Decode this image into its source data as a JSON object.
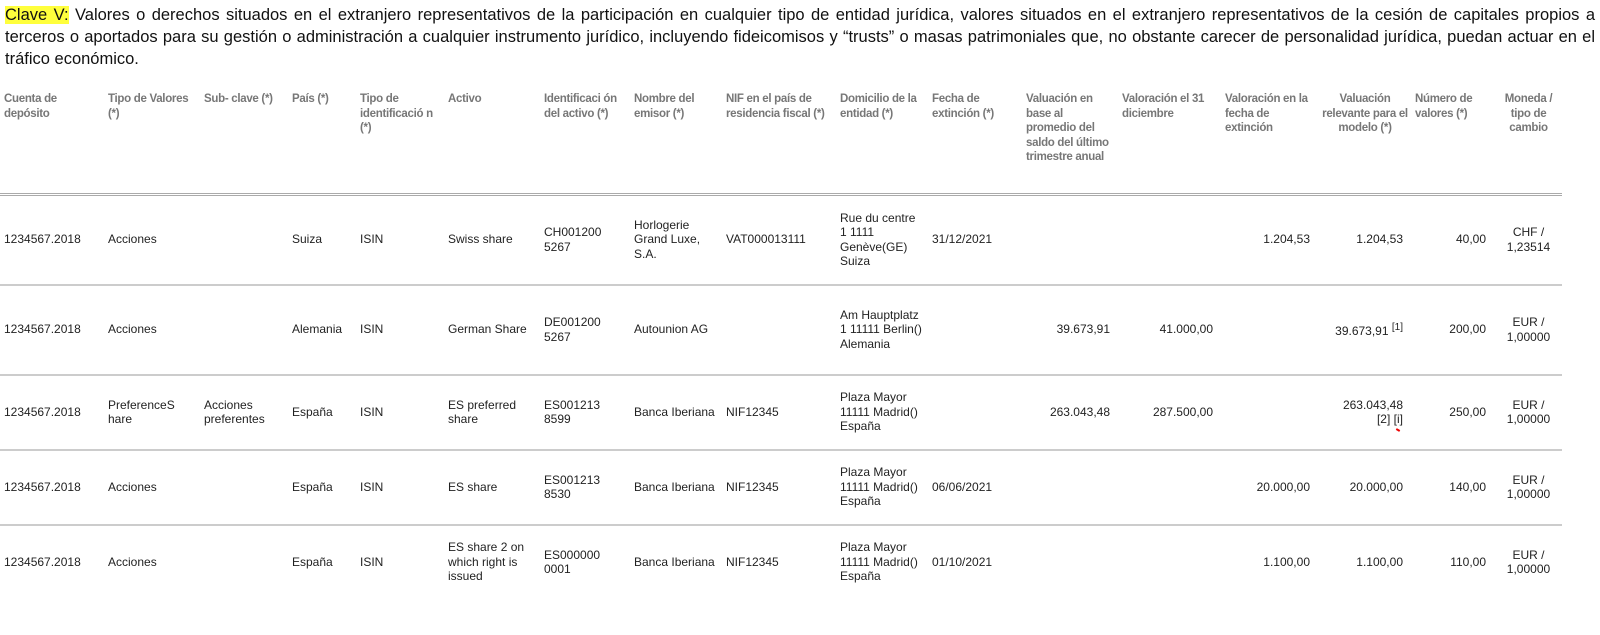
{
  "intro": {
    "label": "Clave V:",
    "text": " Valores o derechos situados en el extranjero representativos de la participación en cualquier tipo de entidad jurídica, valores situados en el extranjero representativos de la cesión de capitales propios a terceros o aportados para su gestión o administración a cualquier instrumento jurídico, incluyendo fideicomisos y “trusts” o masas patrimoniales que, no obstante carecer de personalidad jurídica, puedan actuar en el tráfico económico."
  },
  "headers": [
    "Cuenta de depósito",
    "Tipo de Valores (*)",
    "Sub- clave (*)",
    "País (*)",
    "Tipo de identificació n (*)",
    "Activo",
    "Identificaci ón del activo (*)",
    "Nombre del emisor (*)",
    "NIF en el país de residencia fiscal (*)",
    "Domicilio de la entidad (*)",
    "Fecha de extinción (*)",
    "Valuación en base al promedio del saldo del último trimestre anual",
    "Valoración el 31 diciembre",
    "Valoración en la fecha de extinción",
    "Valuación relevante para el modelo (*)",
    "Número de valores (*)",
    "Moneda / tipo de cambio"
  ],
  "rows": [
    {
      "cuenta": "1234567.2018",
      "tipo": "Acciones",
      "subclave": "",
      "pais": "Suiza",
      "tipo_id": "ISIN",
      "activo": "Swiss share",
      "id_activo": "CH001200 5267",
      "emisor": "Horlogerie Grand Luxe, S.A.",
      "nif": "VAT000013111",
      "domicilio": "Rue du centre 1 1111 Genève(GE) Suiza",
      "fecha": "31/12/2021",
      "val_promedio": "",
      "val_31dic": "",
      "val_extincion": "1.204,53",
      "val_relevante": "1.204,53",
      "nota": "",
      "nota2": "",
      "numero": "40,00",
      "moneda": "CHF / 1,23514"
    },
    {
      "cuenta": "1234567.2018",
      "tipo": "Acciones",
      "subclave": "",
      "pais": "Alemania",
      "tipo_id": "ISIN",
      "activo": "German Share",
      "id_activo": "DE001200 5267",
      "emisor": "Autounion AG",
      "nif": "",
      "domicilio": "Am Hauptplatz 1 11111 Berlin() Alemania",
      "fecha": "",
      "val_promedio": "39.673,91",
      "val_31dic": "41.000,00",
      "val_extincion": "",
      "val_relevante": "39.673,91",
      "nota": "[1]",
      "nota2": "",
      "numero": "200,00",
      "moneda": "EUR / 1,00000"
    },
    {
      "cuenta": "1234567.2018",
      "tipo": "PreferenceS hare",
      "subclave": "Acciones preferentes",
      "pais": "España",
      "tipo_id": "ISIN",
      "activo": "ES preferred share",
      "id_activo": "ES001213 8599",
      "emisor": "Banca Iberiana",
      "nif": "NIF12345",
      "domicilio": "Plaza Mayor 11111 Madrid() España",
      "fecha": "",
      "val_promedio": "263.043,48",
      "val_31dic": "287.500,00",
      "val_extincion": "",
      "val_relevante": "263.043,48",
      "nota": "[2]",
      "nota2": "[i]",
      "numero": "250,00",
      "moneda": "EUR / 1,00000"
    },
    {
      "cuenta": "1234567.2018",
      "tipo": "Acciones",
      "subclave": "",
      "pais": "España",
      "tipo_id": "ISIN",
      "activo": "ES share",
      "id_activo": "ES001213 8530",
      "emisor": "Banca Iberiana",
      "nif": "NIF12345",
      "domicilio": "Plaza Mayor 11111 Madrid() España",
      "fecha": "06/06/2021",
      "val_promedio": "",
      "val_31dic": "",
      "val_extincion": "20.000,00",
      "val_relevante": "20.000,00",
      "nota": "",
      "nota2": "",
      "numero": "140,00",
      "moneda": "EUR / 1,00000"
    },
    {
      "cuenta": "1234567.2018",
      "tipo": "Acciones",
      "subclave": "",
      "pais": "España",
      "tipo_id": "ISIN",
      "activo": "ES share 2 on which right is issued",
      "id_activo": "ES000000 0001",
      "emisor": "Banca Iberiana",
      "nif": "NIF12345",
      "domicilio": "Plaza Mayor 11111 Madrid() España",
      "fecha": "01/10/2021",
      "val_promedio": "",
      "val_31dic": "",
      "val_extincion": "1.100,00",
      "val_relevante": "1.100,00",
      "nota": "",
      "nota2": "",
      "numero": "110,00",
      "moneda": "EUR / 1,00000"
    }
  ]
}
